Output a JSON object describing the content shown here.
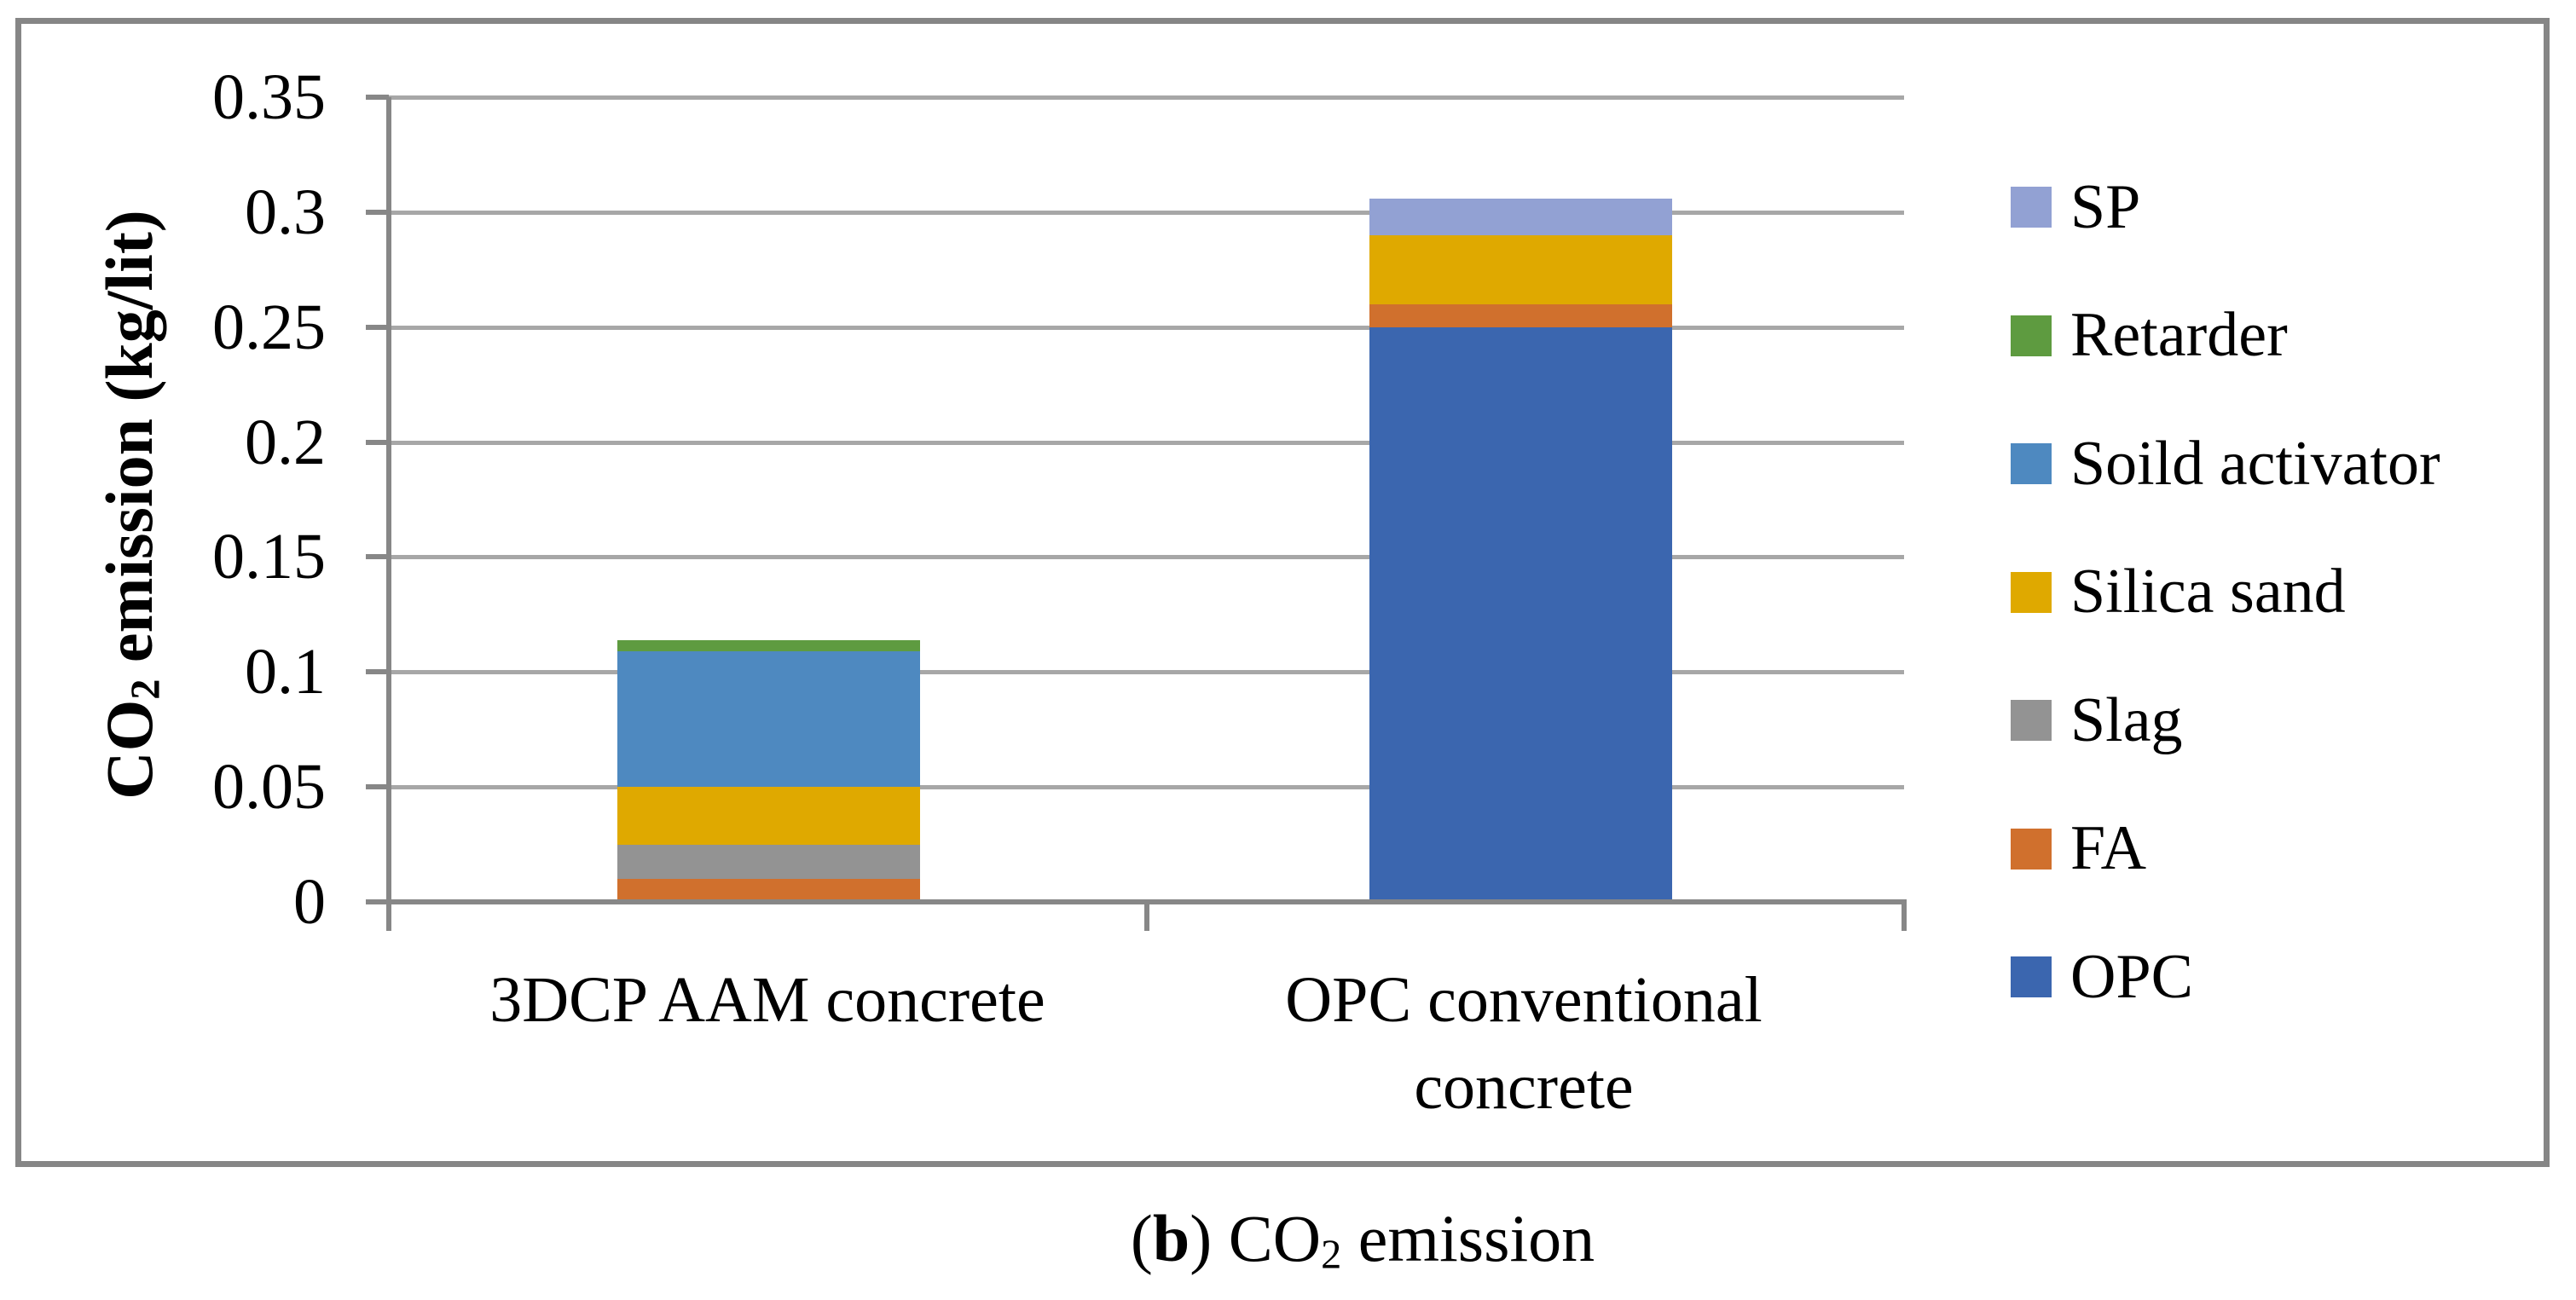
{
  "y_axis": {
    "title_co": "CO",
    "title_sub": "2",
    "title_rest": " emission (kg/lit)",
    "ticks": [
      "0",
      "0.05",
      "0.1",
      "0.15",
      "0.2",
      "0.25",
      "0.3",
      "0.35"
    ]
  },
  "x_axis": {
    "labels": [
      "3DCP AAM concrete",
      "OPC conventional\nconcrete"
    ]
  },
  "legend_order": [
    "SP",
    "Retarder",
    "Soild activator",
    "Silica sand",
    "Slag",
    "FA",
    "OPC"
  ],
  "caption": {
    "paren_open": "(",
    "panel_letter": "b",
    "paren_close": ") ",
    "co": "CO",
    "sub": "2",
    "rest": " emission"
  },
  "colors": {
    "frame": "#868686",
    "axis": "#878787",
    "gridline": "#A7A7A7"
  },
  "chart_data": {
    "type": "bar",
    "stacked": true,
    "stack_order": "bottom_to_top",
    "title": "",
    "xlabel": "",
    "ylabel": "CO2 emission (kg/lit)",
    "ylim": [
      0,
      0.35
    ],
    "ytick_step": 0.05,
    "grid": true,
    "legend_position": "right",
    "categories": [
      "3DCP AAM concrete",
      "OPC conventional concrete"
    ],
    "series": [
      {
        "name": "OPC",
        "color": "#3B66AF",
        "values": [
          0,
          0.25
        ]
      },
      {
        "name": "FA",
        "color": "#D0702D",
        "values": [
          0.01,
          0.01
        ]
      },
      {
        "name": "Slag",
        "color": "#939393",
        "values": [
          0.015,
          0
        ]
      },
      {
        "name": "Silica sand",
        "color": "#DFA900",
        "values": [
          0.025,
          0.03
        ]
      },
      {
        "name": "Soild activator",
        "color": "#4E89C0",
        "values": [
          0.059,
          0
        ]
      },
      {
        "name": "Retarder",
        "color": "#5E9B40",
        "values": [
          0.005,
          0
        ]
      },
      {
        "name": "SP",
        "color": "#92A1D3",
        "values": [
          0,
          0.016
        ]
      }
    ],
    "totals": [
      0.114,
      0.306
    ]
  }
}
